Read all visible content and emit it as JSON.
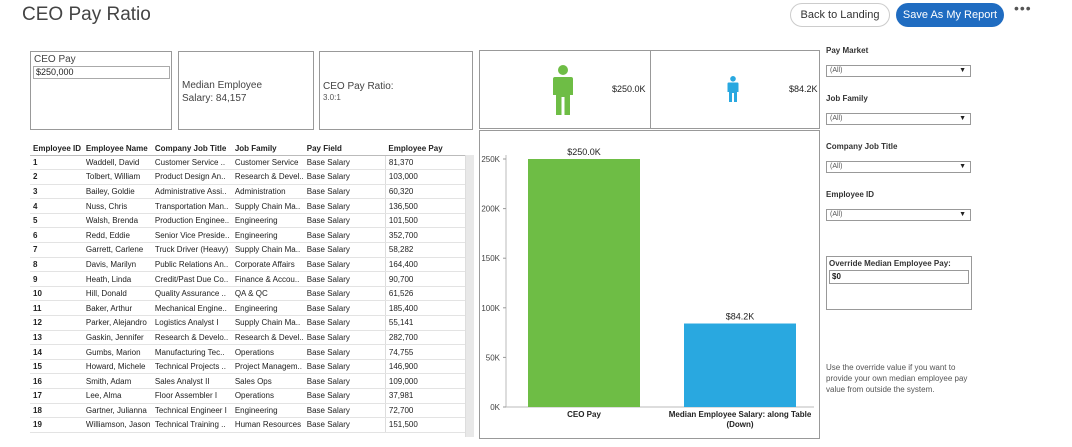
{
  "header": {
    "title": "CEO Pay Ratio",
    "back_label": "Back to Landing",
    "save_label": "Save As My Report",
    "more_label": "•••"
  },
  "cards": {
    "ceo_pay_label": "CEO Pay",
    "ceo_pay_value": "$250,000",
    "median_label_1": "Median Employee",
    "median_label_2": "Salary: 84,157",
    "ratio_label": "CEO Pay Ratio:",
    "ratio_value": "3.0:1"
  },
  "icon_cards": {
    "ceo_amount": "$250.0K",
    "emp_amount": "$84.2K",
    "ceo_color": "#6ebd45",
    "emp_color": "#29a8e0"
  },
  "table": {
    "headers": [
      "Employee ID",
      "Employee Name",
      "Company Job Title",
      "Job Family",
      "Pay Field",
      "Employee Pay"
    ],
    "rows": [
      [
        "1",
        "Waddell, David",
        "Customer Service ..",
        "Customer Service",
        "Base Salary",
        "81,370"
      ],
      [
        "2",
        "Tolbert, William",
        "Product Design An..",
        "Research & Devel..",
        "Base Salary",
        "103,000"
      ],
      [
        "3",
        "Bailey, Goldie",
        "Administrative Assi..",
        "Administration",
        "Base Salary",
        "60,320"
      ],
      [
        "4",
        "Nuss, Chris",
        "Transportation Man..",
        "Supply Chain Ma..",
        "Base Salary",
        "136,500"
      ],
      [
        "5",
        "Walsh, Brenda",
        "Production Enginee..",
        "Engineering",
        "Base Salary",
        "101,500"
      ],
      [
        "6",
        "Redd, Eddie",
        "Senior Vice Preside..",
        "Engineering",
        "Base Salary",
        "352,700"
      ],
      [
        "7",
        "Garrett, Carlene",
        "Truck Driver (Heavy)",
        "Supply Chain Ma..",
        "Base Salary",
        "58,282"
      ],
      [
        "8",
        "Davis, Marilyn",
        "Public Relations An..",
        "Corporate Affairs",
        "Base Salary",
        "164,400"
      ],
      [
        "9",
        "Heath, Linda",
        "Credit/Past Due Co..",
        "Finance & Accou..",
        "Base Salary",
        "90,700"
      ],
      [
        "10",
        "Hill, Donald",
        "Quality Assurance ..",
        "QA & QC",
        "Base Salary",
        "61,526"
      ],
      [
        "11",
        "Baker, Arthur",
        "Mechanical Engine..",
        "Engineering",
        "Base Salary",
        "185,400"
      ],
      [
        "12",
        "Parker, Alejandro",
        "Logistics Analyst I",
        "Supply Chain Ma..",
        "Base Salary",
        "55,141"
      ],
      [
        "13",
        "Gaskin, Jennifer",
        "Research & Develo..",
        "Research & Devel..",
        "Base Salary",
        "282,700"
      ],
      [
        "14",
        "Gumbs, Marion",
        "Manufacturing Tec..",
        "Operations",
        "Base Salary",
        "74,755"
      ],
      [
        "15",
        "Howard, Michele",
        "Technical Projects ..",
        "Project Managem..",
        "Base Salary",
        "146,900"
      ],
      [
        "16",
        "Smith, Adam",
        "Sales Analyst II",
        "Sales Ops",
        "Base Salary",
        "109,000"
      ],
      [
        "17",
        "Lee, Alma",
        "Floor Assembler I",
        "Operations",
        "Base Salary",
        "37,981"
      ],
      [
        "18",
        "Gartner, Julianna",
        "Technical Engineer I",
        "Engineering",
        "Base Salary",
        "72,700"
      ],
      [
        "19",
        "Williamson, Jason",
        "Technical Training ..",
        "Human Resources",
        "Base Salary",
        "151,500"
      ]
    ]
  },
  "chart_data": {
    "type": "bar",
    "categories": [
      "CEO Pay",
      "Median Employee Salary: along Table (Down)"
    ],
    "category_lines": [
      [
        "CEO Pay"
      ],
      [
        "Median Employee Salary: along Table",
        "(Down)"
      ]
    ],
    "values": [
      250000,
      84157
    ],
    "data_labels": [
      "$250.0K",
      "$84.2K"
    ],
    "colors": [
      "#6ebd45",
      "#29a8e0"
    ],
    "y_ticks": [
      0,
      50000,
      100000,
      150000,
      200000,
      250000
    ],
    "y_tick_labels": [
      "0K",
      "50K",
      "100K",
      "150K",
      "200K",
      "250K"
    ],
    "ylim": [
      0,
      250000
    ],
    "grid": false
  },
  "filters": [
    {
      "label": "Pay Market",
      "value": "(All)"
    },
    {
      "label": "Job Family",
      "value": "(All)"
    },
    {
      "label": "Company Job Title",
      "value": "(All)"
    },
    {
      "label": "Employee ID",
      "value": "(All)"
    }
  ],
  "override": {
    "label": "Override Median Employee Pay:",
    "value": "$0"
  },
  "help_text": "Use the override value if you want to provide your own median employee pay value from outside the system."
}
